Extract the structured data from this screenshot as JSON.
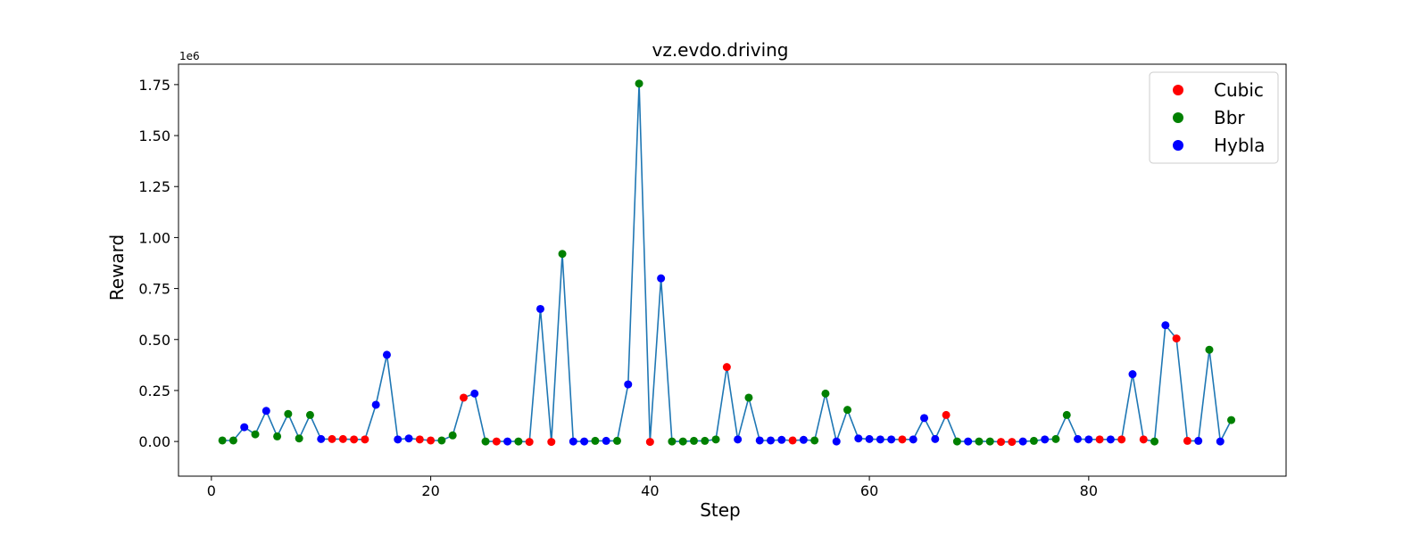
{
  "chart_data": {
    "type": "line",
    "title": "vz.evdo.driving",
    "xlabel": "Step",
    "ylabel": "Reward",
    "y_offset_label": "1e6",
    "y_scale": 1000000,
    "xlim": [
      -3,
      98
    ],
    "ylim": [
      -0.17,
      1.85
    ],
    "x_ticks": [
      0,
      20,
      40,
      60,
      80
    ],
    "y_ticks": [
      0.0,
      0.25,
      0.5,
      0.75,
      1.0,
      1.25,
      1.5,
      1.75
    ],
    "y_tick_labels": [
      "0.00",
      "0.25",
      "0.50",
      "0.75",
      "1.00",
      "1.25",
      "1.50",
      "1.75"
    ],
    "grid": false,
    "legend_position": "top-right",
    "line_color": "#1f77b4",
    "legend": [
      {
        "name": "Cubic",
        "color": "#ff0000"
      },
      {
        "name": "Bbr",
        "color": "#008000"
      },
      {
        "name": "Hybla",
        "color": "#0000ff"
      }
    ],
    "points": [
      {
        "x": 1,
        "y": 0.005,
        "algo": "Bbr"
      },
      {
        "x": 2,
        "y": 0.005,
        "algo": "Bbr"
      },
      {
        "x": 3,
        "y": 0.07,
        "algo": "Hybla"
      },
      {
        "x": 4,
        "y": 0.035,
        "algo": "Bbr"
      },
      {
        "x": 5,
        "y": 0.15,
        "algo": "Hybla"
      },
      {
        "x": 6,
        "y": 0.025,
        "algo": "Bbr"
      },
      {
        "x": 7,
        "y": 0.135,
        "algo": "Bbr"
      },
      {
        "x": 8,
        "y": 0.015,
        "algo": "Bbr"
      },
      {
        "x": 9,
        "y": 0.13,
        "algo": "Bbr"
      },
      {
        "x": 10,
        "y": 0.012,
        "algo": "Hybla"
      },
      {
        "x": 11,
        "y": 0.012,
        "algo": "Cubic"
      },
      {
        "x": 12,
        "y": 0.012,
        "algo": "Cubic"
      },
      {
        "x": 13,
        "y": 0.01,
        "algo": "Cubic"
      },
      {
        "x": 14,
        "y": 0.01,
        "algo": "Cubic"
      },
      {
        "x": 15,
        "y": 0.18,
        "algo": "Hybla"
      },
      {
        "x": 16,
        "y": 0.425,
        "algo": "Hybla"
      },
      {
        "x": 17,
        "y": 0.01,
        "algo": "Hybla"
      },
      {
        "x": 18,
        "y": 0.015,
        "algo": "Hybla"
      },
      {
        "x": 19,
        "y": 0.01,
        "algo": "Cubic"
      },
      {
        "x": 20,
        "y": 0.005,
        "algo": "Cubic"
      },
      {
        "x": 21,
        "y": 0.005,
        "algo": "Bbr"
      },
      {
        "x": 22,
        "y": 0.03,
        "algo": "Bbr"
      },
      {
        "x": 23,
        "y": 0.215,
        "algo": "Cubic"
      },
      {
        "x": 24,
        "y": 0.235,
        "algo": "Hybla"
      },
      {
        "x": 25,
        "y": 0.0,
        "algo": "Bbr"
      },
      {
        "x": 26,
        "y": 0.0,
        "algo": "Cubic"
      },
      {
        "x": 27,
        "y": 0.0,
        "algo": "Hybla"
      },
      {
        "x": 28,
        "y": 0.0,
        "algo": "Bbr"
      },
      {
        "x": 29,
        "y": -0.002,
        "algo": "Cubic"
      },
      {
        "x": 30,
        "y": 0.65,
        "algo": "Hybla"
      },
      {
        "x": 31,
        "y": -0.002,
        "algo": "Cubic"
      },
      {
        "x": 32,
        "y": 0.92,
        "algo": "Bbr"
      },
      {
        "x": 33,
        "y": 0.0,
        "algo": "Hybla"
      },
      {
        "x": 34,
        "y": 0.0,
        "algo": "Hybla"
      },
      {
        "x": 35,
        "y": 0.003,
        "algo": "Bbr"
      },
      {
        "x": 36,
        "y": 0.003,
        "algo": "Hybla"
      },
      {
        "x": 37,
        "y": 0.003,
        "algo": "Bbr"
      },
      {
        "x": 38,
        "y": 0.28,
        "algo": "Hybla"
      },
      {
        "x": 39,
        "y": 1.755,
        "algo": "Bbr"
      },
      {
        "x": 40,
        "y": -0.002,
        "algo": "Cubic"
      },
      {
        "x": 41,
        "y": 0.8,
        "algo": "Hybla"
      },
      {
        "x": 42,
        "y": 0.0,
        "algo": "Bbr"
      },
      {
        "x": 43,
        "y": 0.0,
        "algo": "Bbr"
      },
      {
        "x": 44,
        "y": 0.003,
        "algo": "Bbr"
      },
      {
        "x": 45,
        "y": 0.003,
        "algo": "Bbr"
      },
      {
        "x": 46,
        "y": 0.01,
        "algo": "Bbr"
      },
      {
        "x": 47,
        "y": 0.365,
        "algo": "Cubic"
      },
      {
        "x": 48,
        "y": 0.01,
        "algo": "Hybla"
      },
      {
        "x": 49,
        "y": 0.215,
        "algo": "Bbr"
      },
      {
        "x": 50,
        "y": 0.005,
        "algo": "Hybla"
      },
      {
        "x": 51,
        "y": 0.005,
        "algo": "Hybla"
      },
      {
        "x": 52,
        "y": 0.008,
        "algo": "Hybla"
      },
      {
        "x": 53,
        "y": 0.005,
        "algo": "Cubic"
      },
      {
        "x": 54,
        "y": 0.008,
        "algo": "Hybla"
      },
      {
        "x": 55,
        "y": 0.005,
        "algo": "Bbr"
      },
      {
        "x": 56,
        "y": 0.235,
        "algo": "Bbr"
      },
      {
        "x": 57,
        "y": 0.0,
        "algo": "Hybla"
      },
      {
        "x": 58,
        "y": 0.155,
        "algo": "Bbr"
      },
      {
        "x": 59,
        "y": 0.015,
        "algo": "Hybla"
      },
      {
        "x": 60,
        "y": 0.012,
        "algo": "Hybla"
      },
      {
        "x": 61,
        "y": 0.01,
        "algo": "Hybla"
      },
      {
        "x": 62,
        "y": 0.01,
        "algo": "Hybla"
      },
      {
        "x": 63,
        "y": 0.01,
        "algo": "Cubic"
      },
      {
        "x": 64,
        "y": 0.01,
        "algo": "Hybla"
      },
      {
        "x": 65,
        "y": 0.115,
        "algo": "Hybla"
      },
      {
        "x": 66,
        "y": 0.012,
        "algo": "Hybla"
      },
      {
        "x": 67,
        "y": 0.13,
        "algo": "Cubic"
      },
      {
        "x": 68,
        "y": 0.0,
        "algo": "Bbr"
      },
      {
        "x": 69,
        "y": 0.0,
        "algo": "Hybla"
      },
      {
        "x": 70,
        "y": 0.0,
        "algo": "Bbr"
      },
      {
        "x": 71,
        "y": 0.0,
        "algo": "Bbr"
      },
      {
        "x": 72,
        "y": -0.002,
        "algo": "Cubic"
      },
      {
        "x": 73,
        "y": -0.002,
        "algo": "Cubic"
      },
      {
        "x": 74,
        "y": 0.0,
        "algo": "Hybla"
      },
      {
        "x": 75,
        "y": 0.003,
        "algo": "Bbr"
      },
      {
        "x": 76,
        "y": 0.01,
        "algo": "Hybla"
      },
      {
        "x": 77,
        "y": 0.012,
        "algo": "Bbr"
      },
      {
        "x": 78,
        "y": 0.13,
        "algo": "Bbr"
      },
      {
        "x": 79,
        "y": 0.012,
        "algo": "Hybla"
      },
      {
        "x": 80,
        "y": 0.01,
        "algo": "Hybla"
      },
      {
        "x": 81,
        "y": 0.01,
        "algo": "Cubic"
      },
      {
        "x": 82,
        "y": 0.01,
        "algo": "Hybla"
      },
      {
        "x": 83,
        "y": 0.01,
        "algo": "Cubic"
      },
      {
        "x": 84,
        "y": 0.33,
        "algo": "Hybla"
      },
      {
        "x": 85,
        "y": 0.01,
        "algo": "Cubic"
      },
      {
        "x": 86,
        "y": 0.0,
        "algo": "Bbr"
      },
      {
        "x": 87,
        "y": 0.57,
        "algo": "Hybla"
      },
      {
        "x": 88,
        "y": 0.505,
        "algo": "Cubic"
      },
      {
        "x": 89,
        "y": 0.003,
        "algo": "Cubic"
      },
      {
        "x": 90,
        "y": 0.003,
        "algo": "Hybla"
      },
      {
        "x": 91,
        "y": 0.45,
        "algo": "Bbr"
      },
      {
        "x": 92,
        "y": 0.0,
        "algo": "Hybla"
      },
      {
        "x": 93,
        "y": 0.105,
        "algo": "Bbr"
      }
    ]
  }
}
